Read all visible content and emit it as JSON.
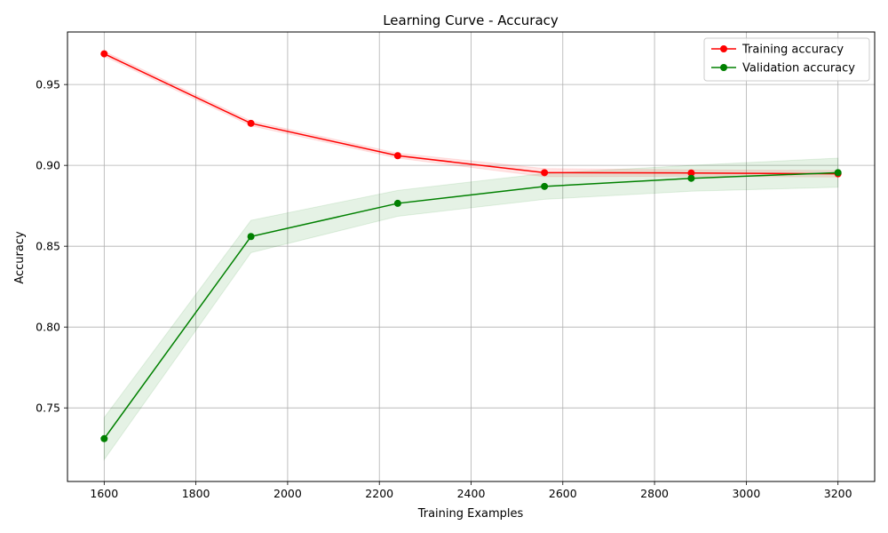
{
  "chart_data": {
    "type": "line",
    "title": "Learning Curve - Accuracy",
    "xlabel": "Training Examples",
    "ylabel": "Accuracy",
    "xlim": [
      1520,
      3280
    ],
    "ylim": [
      0.7045,
      0.9825
    ],
    "xticks": [
      1600,
      1800,
      2000,
      2200,
      2400,
      2600,
      2800,
      3000,
      3200
    ],
    "yticks": [
      0.75,
      0.8,
      0.85,
      0.9,
      0.95
    ],
    "ytick_labels": [
      "0.75",
      "0.80",
      "0.85",
      "0.90",
      "0.95"
    ],
    "grid": true,
    "legend_position": "upper right",
    "x": [
      1600,
      1920,
      2240,
      2560,
      2880,
      3200
    ],
    "series": [
      {
        "name": "Training accuracy",
        "color": "#ff0000",
        "values": [
          0.969,
          0.926,
          0.906,
          0.8955,
          0.8953,
          0.8948
        ],
        "band": [
          0.0015,
          0.0015,
          0.0015,
          0.0025,
          0.002,
          0.002
        ]
      },
      {
        "name": "Validation accuracy",
        "color": "#008000",
        "values": [
          0.731,
          0.856,
          0.8765,
          0.887,
          0.892,
          0.8955
        ],
        "band": [
          0.013,
          0.01,
          0.008,
          0.008,
          0.008,
          0.009
        ]
      }
    ]
  }
}
